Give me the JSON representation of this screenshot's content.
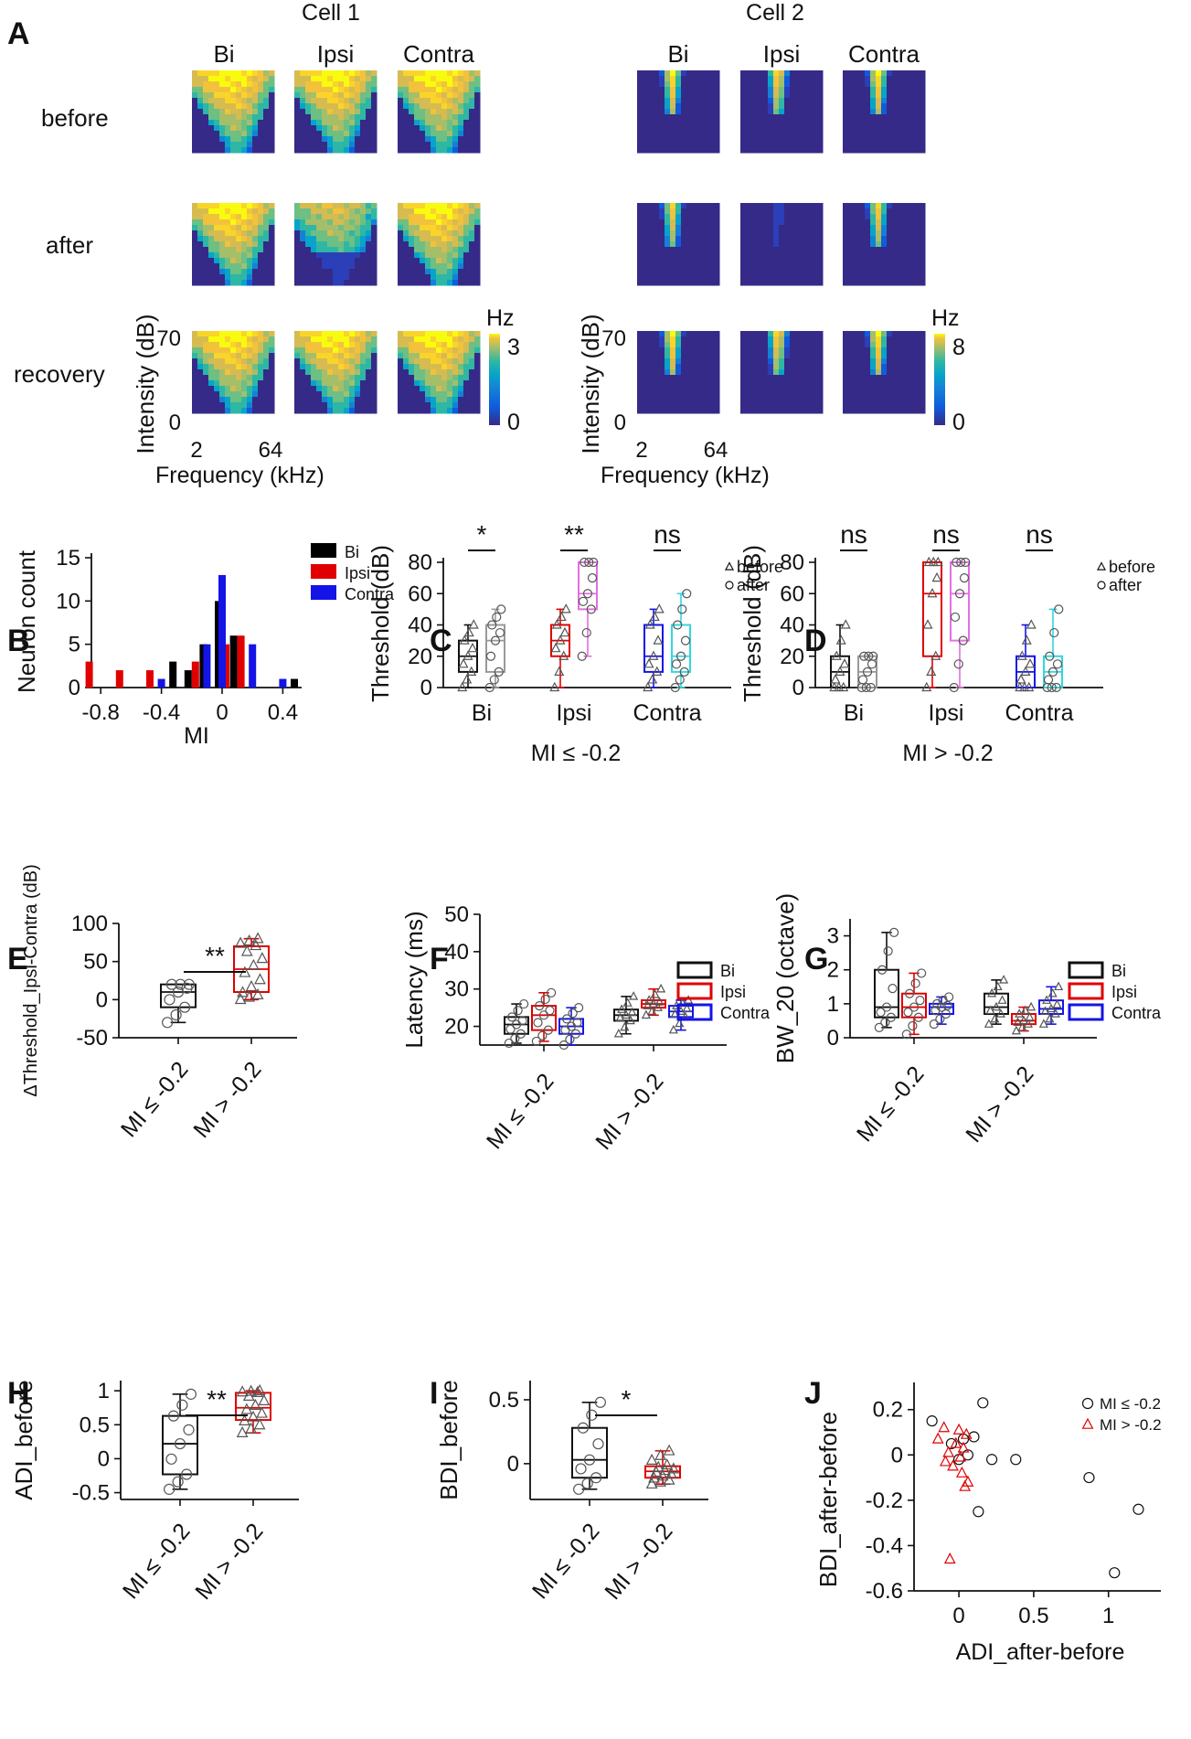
{
  "chart_data": [
    {
      "panel": "A",
      "type": "heatmap",
      "title": "Cell 1",
      "columns": [
        "Bi",
        "Ipsi",
        "Contra"
      ],
      "rows": [
        "before",
        "after",
        "recovery"
      ],
      "ylabel": "Intensity (dB)",
      "xlabel": "Frequency (kHz)",
      "y_ticks": [
        "70",
        "0"
      ],
      "x_ticks": [
        "2",
        "64"
      ],
      "colorbar": {
        "label": "Hz",
        "max": "3",
        "min": "0"
      }
    },
    {
      "panel": "A",
      "type": "heatmap",
      "title": "Cell 2",
      "columns": [
        "Bi",
        "Ipsi",
        "Contra"
      ],
      "rows": [
        "before",
        "after",
        "recovery"
      ],
      "ylabel": "Intensity (dB)",
      "xlabel": "Frequency (kHz)",
      "y_ticks": [
        "70",
        "0"
      ],
      "x_ticks": [
        "2",
        "64"
      ],
      "colorbar": {
        "label": "Hz",
        "max": "8",
        "min": "0"
      }
    },
    {
      "panel": "B",
      "type": "bar",
      "xlabel": "MI",
      "ylabel": "Neuron count",
      "x_ticks": [
        "-0.8",
        "-0.4",
        "0",
        "0.4"
      ],
      "y_ticks": [
        "0",
        "5",
        "10",
        "15"
      ],
      "ylim": [
        0,
        15
      ],
      "series": [
        {
          "name": "Bi",
          "color": "#000000",
          "bins": [
            -0.3,
            -0.2,
            -0.1,
            0.0,
            0.1,
            0.5
          ],
          "values": [
            3,
            2,
            5,
            10,
            6,
            1
          ]
        },
        {
          "name": "Ipsi",
          "color": "#e00000",
          "bins": [
            -0.9,
            -0.7,
            -0.5,
            -0.2,
            0.0,
            0.1
          ],
          "values": [
            3,
            2,
            2,
            3,
            5,
            6
          ]
        },
        {
          "name": "Contra",
          "color": "#1414e6",
          "bins": [
            -0.4,
            -0.1,
            0.0,
            0.2,
            0.4
          ],
          "values": [
            1,
            5,
            13,
            5,
            1
          ]
        }
      ]
    },
    {
      "panel": "C",
      "type": "box",
      "subtitle": "MI ≤ -0.2",
      "ylabel": "Threshold (dB)",
      "categories": [
        "Bi",
        "Ipsi",
        "Contra"
      ],
      "y_ticks": [
        "0",
        "20",
        "40",
        "60",
        "80"
      ],
      "ylim": [
        0,
        80
      ],
      "significance": [
        "*",
        "**",
        "ns"
      ],
      "legend": [
        "before",
        "after"
      ],
      "boxes": [
        {
          "group": "Bi",
          "cond": "before",
          "min": 0,
          "q1": 10,
          "med": 20,
          "q3": 30,
          "max": 40
        },
        {
          "group": "Bi",
          "cond": "after",
          "min": 0,
          "q1": 10,
          "med": 30,
          "q3": 40,
          "max": 50
        },
        {
          "group": "Ipsi",
          "cond": "before",
          "min": 0,
          "q1": 20,
          "med": 30,
          "q3": 40,
          "max": 50
        },
        {
          "group": "Ipsi",
          "cond": "after",
          "min": 20,
          "q1": 50,
          "med": 60,
          "q3": 80,
          "max": 80
        },
        {
          "group": "Contra",
          "cond": "before",
          "min": 0,
          "q1": 10,
          "med": 20,
          "q3": 40,
          "max": 50
        },
        {
          "group": "Contra",
          "cond": "after",
          "min": 0,
          "q1": 10,
          "med": 20,
          "q3": 40,
          "max": 60
        }
      ]
    },
    {
      "panel": "D",
      "type": "box",
      "subtitle": "MI > -0.2",
      "ylabel": "Threshold (dB)",
      "categories": [
        "Bi",
        "Ipsi",
        "Contra"
      ],
      "y_ticks": [
        "0",
        "20",
        "40",
        "60",
        "80"
      ],
      "ylim": [
        0,
        80
      ],
      "significance": [
        "ns",
        "ns",
        "ns"
      ],
      "legend": [
        "before",
        "after"
      ],
      "boxes": [
        {
          "group": "Bi",
          "cond": "before",
          "min": 0,
          "q1": 0,
          "med": 10,
          "q3": 20,
          "max": 40
        },
        {
          "group": "Bi",
          "cond": "after",
          "min": 0,
          "q1": 0,
          "med": 10,
          "q3": 20,
          "max": 20
        },
        {
          "group": "Ipsi",
          "cond": "before",
          "min": 0,
          "q1": 20,
          "med": 60,
          "q3": 80,
          "max": 80
        },
        {
          "group": "Ipsi",
          "cond": "after",
          "min": 0,
          "q1": 30,
          "med": 60,
          "q3": 80,
          "max": 80
        },
        {
          "group": "Contra",
          "cond": "before",
          "min": 0,
          "q1": 0,
          "med": 10,
          "q3": 20,
          "max": 40
        },
        {
          "group": "Contra",
          "cond": "after",
          "min": 0,
          "q1": 0,
          "med": 10,
          "q3": 20,
          "max": 50
        }
      ]
    },
    {
      "panel": "E",
      "type": "box",
      "ylabel": "ΔThreshold_Ipsi-Contra (dB)",
      "categories": [
        "MI ≤ -0.2",
        "MI > -0.2"
      ],
      "y_ticks": [
        "-50",
        "0",
        "50",
        "100"
      ],
      "ylim": [
        -50,
        100
      ],
      "significance": "**",
      "boxes": [
        {
          "group": "MI ≤ -0.2",
          "min": -30,
          "q1": -10,
          "med": 10,
          "q3": 20,
          "max": 20
        },
        {
          "group": "MI > -0.2",
          "min": 0,
          "q1": 10,
          "med": 40,
          "q3": 70,
          "max": 80
        }
      ]
    },
    {
      "panel": "F",
      "type": "box",
      "ylabel": "Latency (ms)",
      "categories": [
        "MI ≤ -0.2",
        "MI > -0.2"
      ],
      "y_ticks": [
        "20",
        "30",
        "40",
        "50"
      ],
      "ylim": [
        15,
        50
      ],
      "legend": [
        "Bi",
        "Ipsi",
        "Contra"
      ],
      "boxes": [
        {
          "group": "MI ≤ -0.2",
          "cond": "Bi",
          "min": 15.5,
          "q1": 18,
          "med": 20.5,
          "q3": 22.5,
          "max": 26
        },
        {
          "group": "MI ≤ -0.2",
          "cond": "Ipsi",
          "min": 16,
          "q1": 19,
          "med": 23,
          "q3": 25.5,
          "max": 29
        },
        {
          "group": "MI ≤ -0.2",
          "cond": "Contra",
          "min": 15,
          "q1": 18,
          "med": 20,
          "q3": 22,
          "max": 25
        },
        {
          "group": "MI > -0.2",
          "cond": "Bi",
          "min": 18,
          "q1": 21.5,
          "med": 23,
          "q3": 24.5,
          "max": 28
        },
        {
          "group": "MI > -0.2",
          "cond": "Ipsi",
          "min": 23,
          "q1": 25,
          "med": 26,
          "q3": 27,
          "max": 30
        },
        {
          "group": "MI > -0.2",
          "cond": "Contra",
          "min": 19,
          "q1": 22.5,
          "med": 24,
          "q3": 25.5,
          "max": 27
        }
      ]
    },
    {
      "panel": "G",
      "type": "box",
      "ylabel": "BW_20 (octave)",
      "categories": [
        "MI ≤ -0.2",
        "MI > -0.2"
      ],
      "y_ticks": [
        "0",
        "1",
        "2",
        "3"
      ],
      "ylim": [
        0,
        3.5
      ],
      "legend": [
        "Bi",
        "Ipsi",
        "Contra"
      ],
      "boxes": [
        {
          "group": "MI ≤ -0.2",
          "cond": "Bi",
          "min": 0.3,
          "q1": 0.6,
          "med": 0.9,
          "q3": 2.0,
          "max": 3.1
        },
        {
          "group": "MI ≤ -0.2",
          "cond": "Ipsi",
          "min": 0.1,
          "q1": 0.6,
          "med": 0.9,
          "q3": 1.3,
          "max": 1.9
        },
        {
          "group": "MI ≤ -0.2",
          "cond": "Contra",
          "min": 0.4,
          "q1": 0.7,
          "med": 0.9,
          "q3": 1.0,
          "max": 1.2
        },
        {
          "group": "MI > -0.2",
          "cond": "Bi",
          "min": 0.4,
          "q1": 0.7,
          "med": 0.9,
          "q3": 1.3,
          "max": 1.7
        },
        {
          "group": "MI > -0.2",
          "cond": "Ipsi",
          "min": 0.2,
          "q1": 0.4,
          "med": 0.5,
          "q3": 0.7,
          "max": 0.9
        },
        {
          "group": "MI > -0.2",
          "cond": "Contra",
          "min": 0.4,
          "q1": 0.7,
          "med": 0.85,
          "q3": 1.1,
          "max": 1.5
        }
      ]
    },
    {
      "panel": "H",
      "type": "box",
      "ylabel": "ADI_before",
      "categories": [
        "MI ≤ -0.2",
        "MI > -0.2"
      ],
      "y_ticks": [
        "-0.5",
        "0",
        "0.5",
        "1"
      ],
      "ylim": [
        -0.6,
        1.15
      ],
      "significance": "**",
      "boxes": [
        {
          "group": "MI ≤ -0.2",
          "min": -0.45,
          "q1": -0.23,
          "med": 0.22,
          "q3": 0.63,
          "max": 0.95
        },
        {
          "group": "MI > -0.2",
          "min": 0.38,
          "q1": 0.57,
          "med": 0.75,
          "q3": 0.97,
          "max": 1.0
        }
      ]
    },
    {
      "panel": "I",
      "type": "box",
      "ylabel": "BDI_before",
      "categories": [
        "MI ≤ -0.2",
        "MI > -0.2"
      ],
      "y_ticks": [
        "0",
        "0.5"
      ],
      "ylim": [
        -0.28,
        0.65
      ],
      "significance": "*",
      "boxes": [
        {
          "group": "MI ≤ -0.2",
          "min": -0.2,
          "q1": -0.11,
          "med": 0.03,
          "q3": 0.28,
          "max": 0.48
        },
        {
          "group": "MI > -0.2",
          "min": -0.16,
          "q1": -0.11,
          "med": -0.06,
          "q3": -0.02,
          "max": 0.1
        }
      ]
    },
    {
      "panel": "J",
      "type": "scatter",
      "xlabel": "ADI_after-before",
      "ylabel": "BDI_after-before",
      "x_ticks": [
        "0",
        "0.5",
        "1"
      ],
      "y_ticks": [
        "0.2",
        "0",
        "-0.2",
        "-0.4",
        "-0.6"
      ],
      "xlim": [
        -0.3,
        1.35
      ],
      "ylim": [
        -0.6,
        0.32
      ],
      "series": [
        {
          "name": "MI ≤ -0.2",
          "marker": "circle",
          "color": "#111111",
          "x": [
            -0.18,
            -0.05,
            0.0,
            0.03,
            0.06,
            0.1,
            0.13,
            0.16,
            0.22,
            0.38,
            0.87,
            1.04,
            1.2
          ],
          "y": [
            0.15,
            0.05,
            -0.02,
            0.07,
            0.0,
            0.08,
            -0.25,
            0.23,
            -0.02,
            -0.02,
            -0.1,
            -0.52,
            -0.24
          ]
        },
        {
          "name": "MI > -0.2",
          "marker": "triangle",
          "color": "#e00000",
          "x": [
            -0.14,
            -0.1,
            -0.07,
            -0.04,
            -0.02,
            0.0,
            0.01,
            0.02,
            0.03,
            0.04,
            0.05,
            0.06,
            -0.09,
            -0.06
          ],
          "y": [
            0.07,
            0.12,
            0.01,
            -0.05,
            0.05,
            0.11,
            -0.01,
            -0.08,
            0.03,
            -0.14,
            0.09,
            -0.12,
            -0.03,
            -0.46
          ]
        }
      ]
    }
  ],
  "text": {
    "panel_a": "A",
    "panel_b": "B",
    "panel_c": "C",
    "panel_d": "D",
    "panel_e": "E",
    "panel_f": "F",
    "panel_g": "G",
    "panel_h": "H",
    "panel_i": "I",
    "panel_j": "J"
  }
}
